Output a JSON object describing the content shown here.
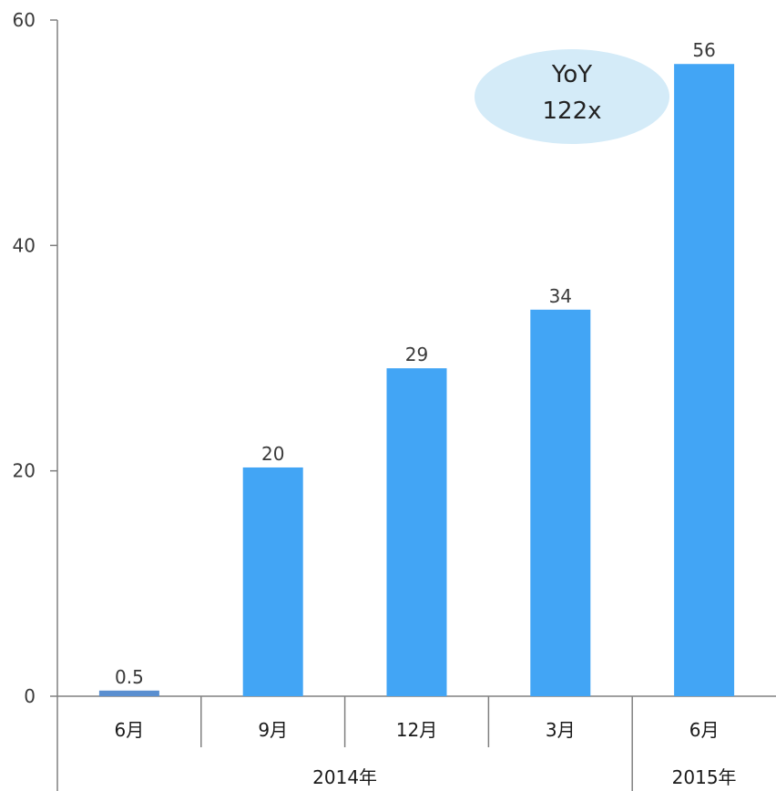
{
  "chart_data": {
    "type": "bar",
    "categories": [
      "6月",
      "9月",
      "12月",
      "3月",
      "6月"
    ],
    "values": [
      0.5,
      20.3,
      29.1,
      34.3,
      56.1
    ],
    "value_labels": [
      "0.5",
      "20",
      "29",
      "34",
      "56"
    ],
    "groups": [
      {
        "label": "2014年",
        "span": [
          0,
          3
        ]
      },
      {
        "label": "2015年",
        "span": [
          4,
          4
        ]
      }
    ],
    "ylim": [
      0,
      60
    ],
    "yticks": [
      0,
      20,
      40,
      60
    ],
    "title": "",
    "xlabel": "",
    "ylabel": "",
    "grid": false,
    "annotation": {
      "line1": "YoY",
      "line2": "122x"
    },
    "colors": {
      "bar": "#42a5f5",
      "first_bar": "#5a8fd0",
      "annotation_fill": "#d4ebf8",
      "axis": "#808080"
    }
  }
}
